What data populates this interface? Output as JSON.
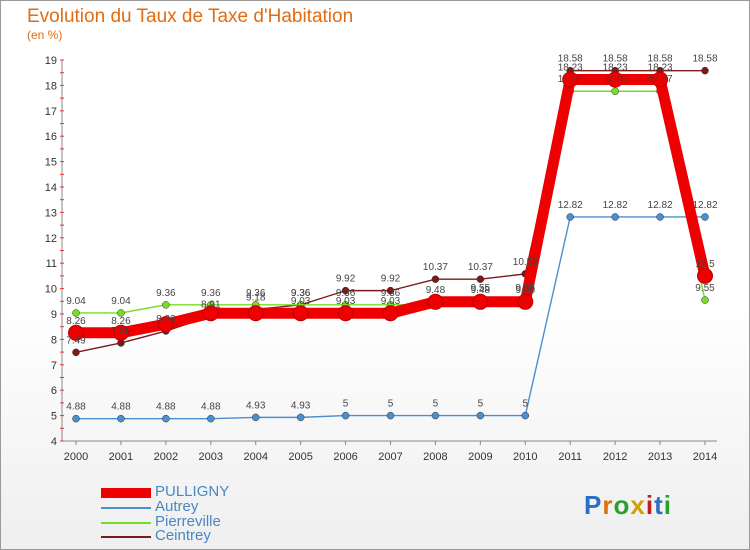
{
  "page": {
    "title": "Evolution du Taux de Taxe d'Habitation",
    "subtitle": "(en %)",
    "logo": "Proxiti"
  },
  "chart_data": {
    "type": "line",
    "title": "Evolution du Taux de Taxe d'Habitation",
    "ylabel": "(en %)",
    "xlabel": "",
    "categories": [
      "2000",
      "2001",
      "2002",
      "2003",
      "2004",
      "2005",
      "2006",
      "2007",
      "2008",
      "2009",
      "2010",
      "2011",
      "2012",
      "2013",
      "2014"
    ],
    "ylim": [
      4,
      19
    ],
    "yticks": [
      4,
      5,
      6,
      7,
      8,
      9,
      10,
      11,
      12,
      13,
      14,
      15,
      16,
      17,
      18,
      19
    ],
    "grid": false,
    "legend_position": "bottom-left",
    "series": [
      {
        "name": "PULLIGNY",
        "color": "#ee0000",
        "values": [
          8.26,
          8.26,
          8.6,
          9.03,
          9.03,
          9.03,
          9.03,
          9.03,
          9.48,
          9.48,
          9.48,
          18.23,
          18.23,
          18.23,
          10.5
        ],
        "labels": [
          "8.26",
          "8.26",
          "",
          "",
          "",
          "9.03",
          "9.03",
          "9.03",
          "9.48",
          "9.48",
          "9.48",
          "18.23",
          "18.23",
          "18.23",
          "10.5"
        ]
      },
      {
        "name": "Autrey",
        "color": "#4a8fd0",
        "values": [
          4.88,
          4.88,
          4.88,
          4.88,
          4.93,
          4.93,
          5,
          5,
          5,
          5,
          5,
          12.82,
          12.82,
          12.82,
          12.82
        ],
        "labels": [
          "4.88",
          "4.88",
          "4.88",
          "4.88",
          "4.93",
          "4.93",
          "5",
          "5",
          "5",
          "5",
          "5",
          "12.82",
          "12.82",
          "12.82",
          "12.82"
        ]
      },
      {
        "name": "Pierreville",
        "color": "#77dd22",
        "values": [
          9.04,
          9.04,
          9.36,
          9.36,
          9.36,
          9.36,
          9.36,
          9.36,
          9.36,
          9.55,
          9.55,
          17.77,
          17.77,
          17.77,
          9.55
        ],
        "labels": [
          "9.04",
          "9.04",
          "9.36",
          "9.36",
          "9.36",
          "9.36",
          "9.36",
          "9.36",
          "",
          "9.55",
          "9.55",
          "17.77",
          "17.77",
          "17.77",
          "9.55"
        ]
      },
      {
        "name": "Ceintrey",
        "color": "#7a1a1a",
        "values": [
          7.49,
          7.86,
          8.33,
          8.91,
          9.18,
          9.36,
          9.92,
          9.92,
          10.37,
          10.37,
          10.58,
          18.58,
          18.58,
          18.58,
          18.58
        ],
        "labels": [
          "7.49",
          "7.86",
          "8.33",
          "8.91",
          "9.18",
          "9.36",
          "9.92",
          "9.92",
          "10.37",
          "10.37",
          "10.58",
          "18.58",
          "18.58",
          "18.58",
          "18.58"
        ]
      }
    ]
  }
}
